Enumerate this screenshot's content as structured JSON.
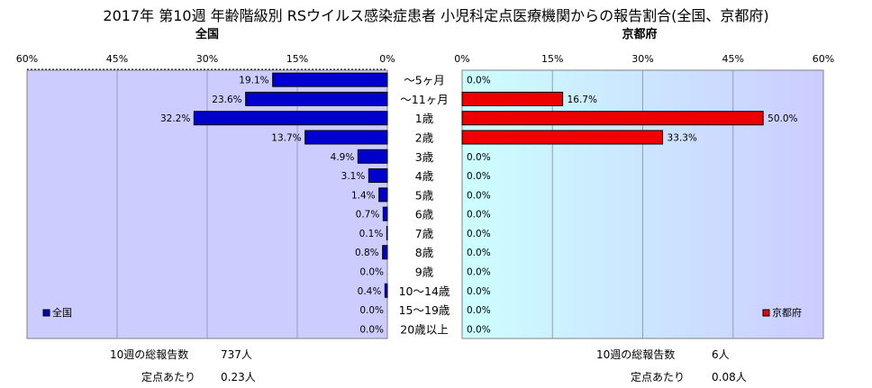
{
  "title": "2017年 第10週 年齢階級別 RSウイルス感染症患者 小児科定点医療機関からの報告割合(全国、京都府)",
  "chart_data": [
    {
      "type": "bar",
      "orientation": "horizontal",
      "title": "全国",
      "categories": [
        "～5ヶ月",
        "～11ヶ月",
        "1歳",
        "2歳",
        "3歳",
        "4歳",
        "5歳",
        "6歳",
        "7歳",
        "8歳",
        "9歳",
        "10～14歳",
        "15～19歳",
        "20歳以上"
      ],
      "series": [
        {
          "name": "全国",
          "color": "#0000CC",
          "values": [
            19.1,
            23.6,
            32.2,
            13.7,
            4.9,
            3.1,
            1.4,
            0.7,
            0.1,
            0.8,
            0.0,
            0.4,
            0.0,
            0.0
          ],
          "labels": [
            "19.1%",
            "23.6%",
            "32.2%",
            "13.7%",
            "4.9%",
            "3.1%",
            "1.4%",
            "0.7%",
            "0.1%",
            "0.8%",
            "0.0%",
            "0.4%",
            "0.0%",
            "0.0%"
          ]
        }
      ],
      "xlim": [
        0,
        60
      ],
      "reversed_x": true,
      "ticks": [
        "60%",
        "45%",
        "30%",
        "15%",
        "0%"
      ],
      "legend_position": "bottom-left",
      "grid": true,
      "plot_bg": "#CCCCFF"
    },
    {
      "type": "bar",
      "orientation": "horizontal",
      "title": "京都府",
      "categories": [
        "～5ヶ月",
        "～11ヶ月",
        "1歳",
        "2歳",
        "3歳",
        "4歳",
        "5歳",
        "6歳",
        "7歳",
        "8歳",
        "9歳",
        "10～14歳",
        "15～19歳",
        "20歳以上"
      ],
      "series": [
        {
          "name": "京都府",
          "color": "#EE0000",
          "values": [
            0.0,
            16.7,
            50.0,
            33.3,
            0.0,
            0.0,
            0.0,
            0.0,
            0.0,
            0.0,
            0.0,
            0.0,
            0.0,
            0.0
          ],
          "labels": [
            "0.0%",
            "16.7%",
            "50.0%",
            "33.3%",
            "0.0%",
            "0.0%",
            "0.0%",
            "0.0%",
            "0.0%",
            "0.0%",
            "0.0%",
            "0.0%",
            "0.0%",
            "0.0%"
          ]
        }
      ],
      "xlim": [
        0,
        60
      ],
      "ticks": [
        "0%",
        "15%",
        "30%",
        "45%",
        "60%"
      ],
      "legend_position": "bottom-right",
      "grid": true,
      "plot_bg_gradient": [
        "#CCFFFF",
        "#CCCCFF"
      ]
    }
  ],
  "stats": {
    "national": {
      "total_label": "10週の総報告数",
      "total_value": "737人",
      "per_label": "定点あたり",
      "per_value": "0.23人"
    },
    "kyoto": {
      "total_label": "10週の総報告数",
      "total_value": "6人",
      "per_label": "定点あたり",
      "per_value": "0.08人"
    }
  }
}
